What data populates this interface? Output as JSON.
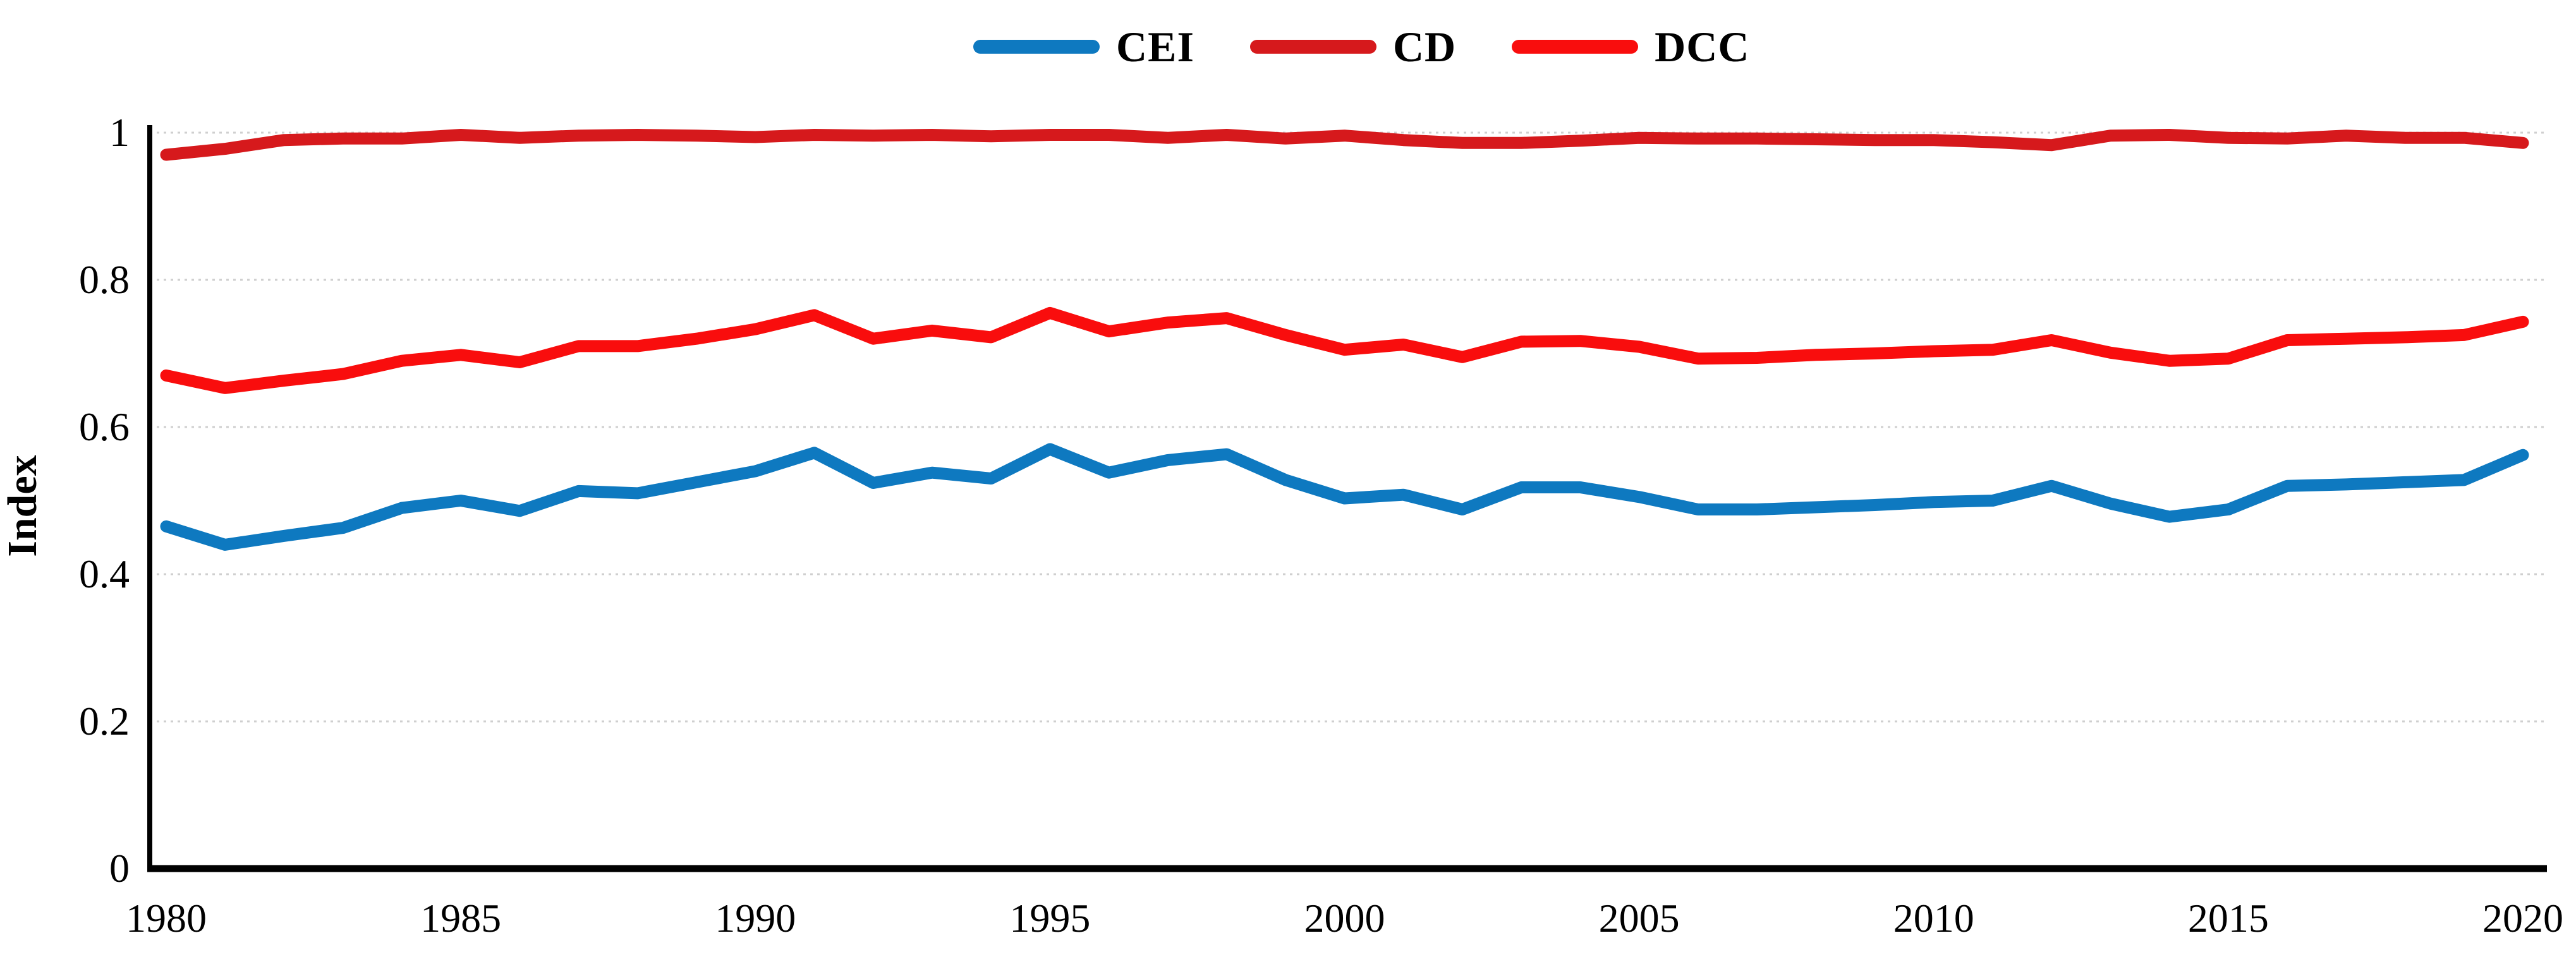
{
  "legend": {
    "items": [
      {
        "label": "CEI",
        "color": "#0E79C0"
      },
      {
        "label": "CD",
        "color": "#D6191C"
      },
      {
        "label": "DCC",
        "color": "#F90D0D"
      }
    ]
  },
  "y_axis": {
    "title": "Index",
    "tick_labels": [
      "0",
      "0.2",
      "0.4",
      "0.6",
      "0.8",
      "1"
    ],
    "tick_values": [
      0,
      0.2,
      0.4,
      0.6,
      0.8,
      1
    ]
  },
  "x_axis": {
    "tick_labels": [
      "1980",
      "1985",
      "1990",
      "1995",
      "2000",
      "2005",
      "2010",
      "2015",
      "2020"
    ],
    "tick_years": [
      1980,
      1985,
      1990,
      1995,
      2000,
      2005,
      2010,
      2015,
      2020
    ]
  },
  "chart_data": {
    "type": "line",
    "title": "",
    "xlabel": "",
    "ylabel": "Index",
    "xlim": [
      1980,
      2020
    ],
    "ylim": [
      0,
      1
    ],
    "grid": true,
    "legend_position": "top-center",
    "x": [
      1980,
      1981,
      1982,
      1983,
      1984,
      1985,
      1986,
      1987,
      1988,
      1989,
      1990,
      1991,
      1992,
      1993,
      1994,
      1995,
      1996,
      1997,
      1998,
      1999,
      2000,
      2001,
      2002,
      2003,
      2004,
      2005,
      2006,
      2007,
      2008,
      2009,
      2010,
      2011,
      2012,
      2013,
      2014,
      2015,
      2016,
      2017,
      2018,
      2019,
      2020
    ],
    "series": [
      {
        "name": "CEI",
        "color": "#0E79C0",
        "values": [
          0.465,
          0.44,
          0.452,
          0.463,
          0.49,
          0.5,
          0.486,
          0.513,
          0.51,
          0.525,
          0.54,
          0.565,
          0.524,
          0.538,
          0.53,
          0.57,
          0.538,
          0.555,
          0.563,
          0.528,
          0.503,
          0.508,
          0.488,
          0.518,
          0.518,
          0.505,
          0.488,
          0.488,
          0.491,
          0.494,
          0.498,
          0.5,
          0.52,
          0.496,
          0.478,
          0.488,
          0.52,
          0.522,
          0.525,
          0.528,
          0.562
        ]
      },
      {
        "name": "CD",
        "color": "#D6191C",
        "values": [
          0.97,
          0.978,
          0.99,
          0.992,
          0.992,
          0.997,
          0.993,
          0.996,
          0.997,
          0.996,
          0.994,
          0.997,
          0.996,
          0.997,
          0.995,
          0.997,
          0.997,
          0.993,
          0.997,
          0.992,
          0.996,
          0.99,
          0.986,
          0.986,
          0.989,
          0.993,
          0.992,
          0.992,
          0.991,
          0.99,
          0.99,
          0.987,
          0.983,
          0.996,
          0.997,
          0.993,
          0.992,
          0.996,
          0.993,
          0.993,
          0.986
        ]
      },
      {
        "name": "DCC",
        "color": "#F90D0D",
        "values": [
          0.67,
          0.653,
          0.663,
          0.672,
          0.69,
          0.698,
          0.688,
          0.71,
          0.71,
          0.72,
          0.733,
          0.752,
          0.72,
          0.731,
          0.722,
          0.755,
          0.73,
          0.742,
          0.748,
          0.725,
          0.705,
          0.712,
          0.695,
          0.716,
          0.717,
          0.709,
          0.693,
          0.694,
          0.698,
          0.7,
          0.703,
          0.705,
          0.718,
          0.701,
          0.69,
          0.693,
          0.718,
          0.72,
          0.722,
          0.725,
          0.743
        ]
      }
    ]
  }
}
